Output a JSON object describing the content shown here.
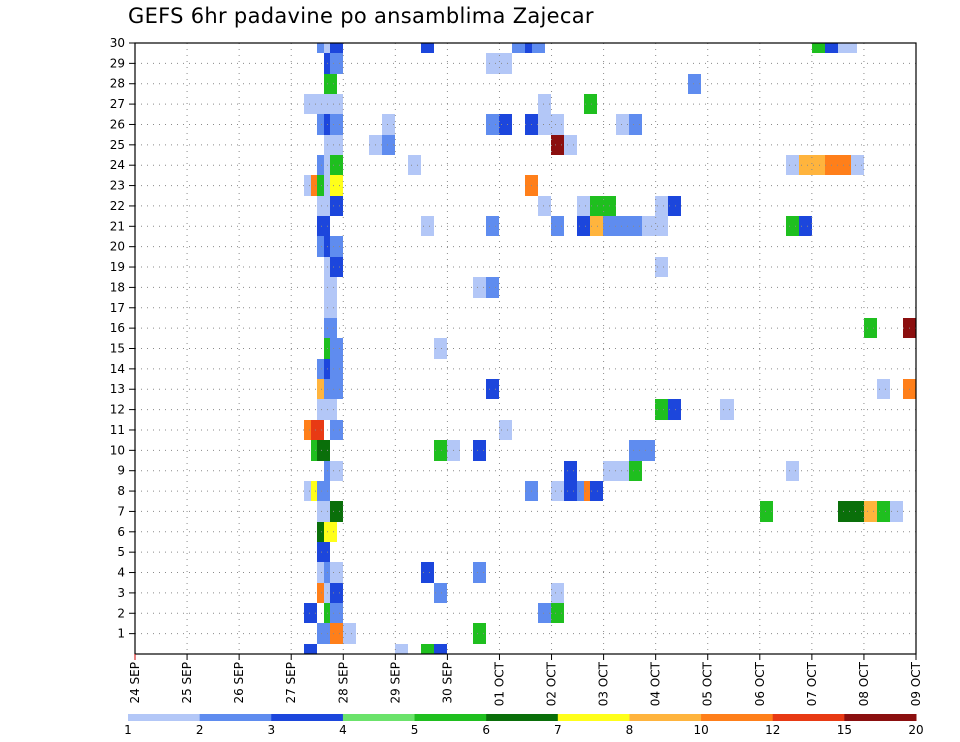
{
  "title": "GEFS 6hr padavine po ansamblima Zajecar",
  "chart_data": {
    "type": "heatmap",
    "title": "GEFS 6hr padavine po ansamblima Zajecar",
    "x_ticks": [
      "24 SEP",
      "25 SEP",
      "26 SEP",
      "27 SEP",
      "28 SEP",
      "29 SEP",
      "30 SEP",
      "01 OCT",
      "02 OCT",
      "03 OCT",
      "04 OCT",
      "05 OCT",
      "06 OCT",
      "07 OCT",
      "08 OCT",
      "09 OCT"
    ],
    "y_ticks": [
      1,
      2,
      3,
      4,
      5,
      6,
      7,
      8,
      9,
      10,
      11,
      12,
      13,
      14,
      15,
      16,
      17,
      18,
      19,
      20,
      21,
      22,
      23,
      24,
      25,
      26,
      27,
      28,
      29,
      30
    ],
    "x_range": [
      "24 SEP 00Z",
      "09 OCT 00Z"
    ],
    "y_range": [
      0,
      30
    ],
    "grid": true,
    "colorbar": {
      "labels": [
        "1",
        "2",
        "3",
        "4",
        "5",
        "6",
        "7",
        "8",
        "10",
        "12",
        "15",
        "20"
      ],
      "colors": [
        "#b3c7f7",
        "#5f8cef",
        "#1c46dc",
        "#6be36b",
        "#1fbf1f",
        "#0a6f0a",
        "#ffff1a",
        "#ffb43d",
        "#ff7f1a",
        "#e83a14",
        "#8b0f0f"
      ]
    },
    "cells": [
      {
        "member": 30,
        "day": 3.62,
        "v": 2
      },
      {
        "member": 30,
        "day": 3.75,
        "v": 1
      },
      {
        "member": 30,
        "day": 3.87,
        "v": 3
      },
      {
        "member": 30,
        "day": 5.62,
        "v": 3
      },
      {
        "member": 30,
        "day": 7.37,
        "v": 2
      },
      {
        "member": 30,
        "day": 7.62,
        "v": 3
      },
      {
        "member": 30,
        "day": 7.75,
        "v": 2
      },
      {
        "member": 30,
        "day": 13.12,
        "v": 5
      },
      {
        "member": 30,
        "day": 13.37,
        "v": 3
      },
      {
        "member": 30,
        "day": 13.62,
        "v": 1
      },
      {
        "member": 30,
        "day": 13.75,
        "v": 1
      },
      {
        "member": 29,
        "day": 3.75,
        "v": 3
      },
      {
        "member": 29,
        "day": 3.87,
        "v": 2
      },
      {
        "member": 29,
        "day": 6.87,
        "v": 1
      },
      {
        "member": 29,
        "day": 7.12,
        "v": 1
      },
      {
        "member": 28,
        "day": 3.75,
        "v": 5
      },
      {
        "member": 28,
        "day": 10.75,
        "v": 2
      },
      {
        "member": 27,
        "day": 3.37,
        "v": 1
      },
      {
        "member": 27,
        "day": 3.62,
        "v": 1
      },
      {
        "member": 27,
        "day": 3.87,
        "v": 1
      },
      {
        "member": 27,
        "day": 7.87,
        "v": 1
      },
      {
        "member": 27,
        "day": 8.75,
        "v": 5
      },
      {
        "member": 26,
        "day": 3.62,
        "v": 2
      },
      {
        "member": 26,
        "day": 3.75,
        "v": 3
      },
      {
        "member": 26,
        "day": 3.87,
        "v": 2
      },
      {
        "member": 26,
        "day": 4.87,
        "v": 1
      },
      {
        "member": 26,
        "day": 6.87,
        "v": 2
      },
      {
        "member": 26,
        "day": 7.12,
        "v": 3
      },
      {
        "member": 26,
        "day": 7.62,
        "v": 3
      },
      {
        "member": 26,
        "day": 7.87,
        "v": 1
      },
      {
        "member": 26,
        "day": 8.12,
        "v": 1
      },
      {
        "member": 26,
        "day": 9.37,
        "v": 1
      },
      {
        "member": 26,
        "day": 9.62,
        "v": 2
      },
      {
        "member": 25,
        "day": 3.75,
        "v": 1
      },
      {
        "member": 25,
        "day": 3.87,
        "v": 1
      },
      {
        "member": 25,
        "day": 4.62,
        "v": 1
      },
      {
        "member": 25,
        "day": 4.87,
        "v": 2
      },
      {
        "member": 25,
        "day": 8.12,
        "v": 15
      },
      {
        "member": 25,
        "day": 8.37,
        "v": 1
      },
      {
        "member": 24,
        "day": 3.62,
        "v": 2
      },
      {
        "member": 24,
        "day": 3.75,
        "v": 1
      },
      {
        "member": 24,
        "day": 3.87,
        "v": 5
      },
      {
        "member": 24,
        "day": 5.37,
        "v": 1
      },
      {
        "member": 24,
        "day": 12.62,
        "v": 1
      },
      {
        "member": 24,
        "day": 12.87,
        "v": 8
      },
      {
        "member": 24,
        "day": 13.12,
        "v": 8
      },
      {
        "member": 24,
        "day": 13.37,
        "v": 10
      },
      {
        "member": 24,
        "day": 13.62,
        "v": 10
      },
      {
        "member": 24,
        "day": 13.87,
        "v": 1
      },
      {
        "member": 23,
        "day": 3.37,
        "v": 1
      },
      {
        "member": 23,
        "day": 3.5,
        "v": 10
      },
      {
        "member": 23,
        "day": 3.62,
        "v": 5
      },
      {
        "member": 23,
        "day": 3.75,
        "v": 1
      },
      {
        "member": 23,
        "day": 3.87,
        "v": 7
      },
      {
        "member": 23,
        "day": 7.62,
        "v": 10
      },
      {
        "member": 22,
        "day": 3.62,
        "v": 1
      },
      {
        "member": 22,
        "day": 3.87,
        "v": 3
      },
      {
        "member": 22,
        "day": 7.87,
        "v": 1
      },
      {
        "member": 22,
        "day": 8.62,
        "v": 1
      },
      {
        "member": 22,
        "day": 8.87,
        "v": 5
      },
      {
        "member": 22,
        "day": 9.12,
        "v": 5
      },
      {
        "member": 22,
        "day": 10.12,
        "v": 1
      },
      {
        "member": 22,
        "day": 10.37,
        "v": 3
      },
      {
        "member": 21,
        "day": 3.62,
        "v": 3
      },
      {
        "member": 21,
        "day": 5.62,
        "v": 1
      },
      {
        "member": 21,
        "day": 6.87,
        "v": 2
      },
      {
        "member": 21,
        "day": 8.12,
        "v": 2
      },
      {
        "member": 21,
        "day": 8.62,
        "v": 3
      },
      {
        "member": 21,
        "day": 8.87,
        "v": 8
      },
      {
        "member": 21,
        "day": 9.12,
        "v": 2
      },
      {
        "member": 21,
        "day": 9.37,
        "v": 2
      },
      {
        "member": 21,
        "day": 9.62,
        "v": 2
      },
      {
        "member": 21,
        "day": 9.87,
        "v": 1
      },
      {
        "member": 21,
        "day": 10.12,
        "v": 1
      },
      {
        "member": 21,
        "day": 12.62,
        "v": 5
      },
      {
        "member": 21,
        "day": 12.87,
        "v": 3
      },
      {
        "member": 20,
        "day": 3.62,
        "v": 2
      },
      {
        "member": 20,
        "day": 3.75,
        "v": 3
      },
      {
        "member": 20,
        "day": 3.87,
        "v": 2
      },
      {
        "member": 19,
        "day": 3.75,
        "v": 1
      },
      {
        "member": 19,
        "day": 3.87,
        "v": 3
      },
      {
        "member": 19,
        "day": 10.12,
        "v": 1
      },
      {
        "member": 18,
        "day": 3.75,
        "v": 1
      },
      {
        "member": 18,
        "day": 6.62,
        "v": 1
      },
      {
        "member": 18,
        "day": 6.87,
        "v": 2
      },
      {
        "member": 17,
        "day": 3.75,
        "v": 1
      },
      {
        "member": 16,
        "day": 3.75,
        "v": 2
      },
      {
        "member": 16,
        "day": 14.12,
        "v": 5
      },
      {
        "member": 16,
        "day": 14.87,
        "v": 15
      },
      {
        "member": 15,
        "day": 3.75,
        "v": 5
      },
      {
        "member": 15,
        "day": 3.87,
        "v": 2
      },
      {
        "member": 15,
        "day": 5.87,
        "v": 1
      },
      {
        "member": 14,
        "day": 3.62,
        "v": 2
      },
      {
        "member": 14,
        "day": 3.75,
        "v": 3
      },
      {
        "member": 14,
        "day": 3.87,
        "v": 2
      },
      {
        "member": 13,
        "day": 3.62,
        "v": 8
      },
      {
        "member": 13,
        "day": 3.75,
        "v": 2
      },
      {
        "member": 13,
        "day": 3.87,
        "v": 2
      },
      {
        "member": 13,
        "day": 6.87,
        "v": 3
      },
      {
        "member": 13,
        "day": 14.37,
        "v": 1
      },
      {
        "member": 13,
        "day": 14.87,
        "v": 10
      },
      {
        "member": 12,
        "day": 3.62,
        "v": 1
      },
      {
        "member": 12,
        "day": 3.75,
        "v": 1
      },
      {
        "member": 12,
        "day": 10.12,
        "v": 5
      },
      {
        "member": 12,
        "day": 10.37,
        "v": 3
      },
      {
        "member": 12,
        "day": 11.37,
        "v": 1
      },
      {
        "member": 11,
        "day": 3.37,
        "v": 10
      },
      {
        "member": 11,
        "day": 3.5,
        "v": 12
      },
      {
        "member": 11,
        "day": 3.87,
        "v": 2
      },
      {
        "member": 11,
        "day": 7.12,
        "v": 1
      },
      {
        "member": 10,
        "day": 3.5,
        "v": 5
      },
      {
        "member": 10,
        "day": 3.62,
        "v": 6
      },
      {
        "member": 10,
        "day": 5.87,
        "v": 5
      },
      {
        "member": 10,
        "day": 6.12,
        "v": 1
      },
      {
        "member": 10,
        "day": 6.62,
        "v": 3
      },
      {
        "member": 10,
        "day": 9.62,
        "v": 2
      },
      {
        "member": 10,
        "day": 9.87,
        "v": 2
      },
      {
        "member": 9,
        "day": 3.75,
        "v": 2
      },
      {
        "member": 9,
        "day": 3.87,
        "v": 1
      },
      {
        "member": 9,
        "day": 8.37,
        "v": 3
      },
      {
        "member": 9,
        "day": 9.12,
        "v": 1
      },
      {
        "member": 9,
        "day": 9.37,
        "v": 1
      },
      {
        "member": 9,
        "day": 9.62,
        "v": 5
      },
      {
        "member": 9,
        "day": 12.62,
        "v": 1
      },
      {
        "member": 8,
        "day": 3.37,
        "v": 1
      },
      {
        "member": 8,
        "day": 3.5,
        "v": 7
      },
      {
        "member": 8,
        "day": 3.62,
        "v": 2
      },
      {
        "member": 8,
        "day": 7.62,
        "v": 2
      },
      {
        "member": 8,
        "day": 8.12,
        "v": 1
      },
      {
        "member": 8,
        "day": 8.37,
        "v": 3
      },
      {
        "member": 8,
        "day": 8.62,
        "v": 2
      },
      {
        "member": 8,
        "day": 8.75,
        "v": 10
      },
      {
        "member": 8,
        "day": 8.87,
        "v": 3
      },
      {
        "member": 7,
        "day": 3.62,
        "v": 1
      },
      {
        "member": 7,
        "day": 3.75,
        "v": 1
      },
      {
        "member": 7,
        "day": 3.87,
        "v": 6
      },
      {
        "member": 7,
        "day": 12.12,
        "v": 5
      },
      {
        "member": 7,
        "day": 13.62,
        "v": 6
      },
      {
        "member": 7,
        "day": 13.87,
        "v": 6
      },
      {
        "member": 7,
        "day": 14.12,
        "v": 8
      },
      {
        "member": 7,
        "day": 14.37,
        "v": 5
      },
      {
        "member": 7,
        "day": 14.62,
        "v": 1
      },
      {
        "member": 6,
        "day": 3.62,
        "v": 6
      },
      {
        "member": 6,
        "day": 3.75,
        "v": 7
      },
      {
        "member": 5,
        "day": 3.62,
        "v": 3
      },
      {
        "member": 4,
        "day": 3.62,
        "v": 1
      },
      {
        "member": 4,
        "day": 3.75,
        "v": 2
      },
      {
        "member": 4,
        "day": 3.87,
        "v": 1
      },
      {
        "member": 4,
        "day": 5.62,
        "v": 3
      },
      {
        "member": 4,
        "day": 6.62,
        "v": 2
      },
      {
        "member": 3,
        "day": 3.62,
        "v": 10
      },
      {
        "member": 3,
        "day": 3.75,
        "v": 1
      },
      {
        "member": 3,
        "day": 3.87,
        "v": 3
      },
      {
        "member": 3,
        "day": 5.87,
        "v": 2
      },
      {
        "member": 3,
        "day": 8.12,
        "v": 1
      },
      {
        "member": 2,
        "day": 3.37,
        "v": 3
      },
      {
        "member": 2,
        "day": 3.75,
        "v": 5
      },
      {
        "member": 2,
        "day": 3.87,
        "v": 2
      },
      {
        "member": 2,
        "day": 7.87,
        "v": 2
      },
      {
        "member": 2,
        "day": 8.12,
        "v": 5
      },
      {
        "member": 1,
        "day": 3.62,
        "v": 2
      },
      {
        "member": 1,
        "day": 3.87,
        "v": 10
      },
      {
        "member": 1,
        "day": 4.12,
        "v": 1
      },
      {
        "member": 1,
        "day": 6.62,
        "v": 5
      },
      {
        "member": 0,
        "day": 3.37,
        "v": 3
      },
      {
        "member": 0,
        "day": 5.12,
        "v": 1
      },
      {
        "member": 0,
        "day": 5.62,
        "v": 5
      },
      {
        "member": 0,
        "day": 5.87,
        "v": 3
      }
    ]
  }
}
